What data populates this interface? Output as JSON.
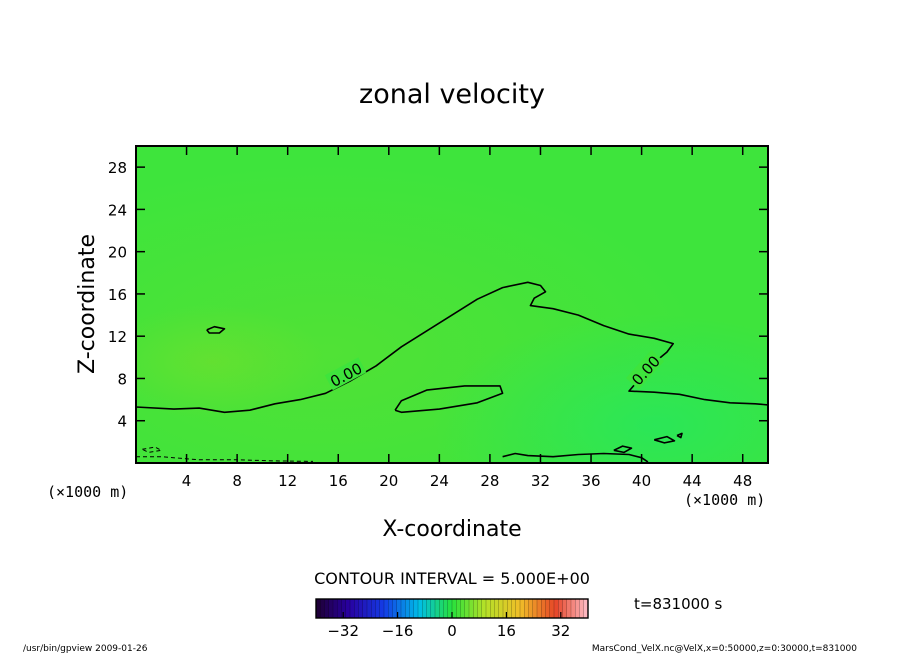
{
  "chart_data": {
    "type": "contour",
    "title": "zonal velocity",
    "xlabel": "X-coordinate",
    "ylabel": "Z-coordinate",
    "x_unit_label": "(×1000 m)",
    "y_unit_label": "(×1000 m)",
    "xlim": [
      0,
      50
    ],
    "ylim": [
      0,
      30
    ],
    "x_ticks": [
      4,
      8,
      12,
      16,
      20,
      24,
      28,
      32,
      36,
      40,
      44,
      48
    ],
    "y_ticks": [
      4,
      8,
      12,
      16,
      20,
      24,
      28
    ],
    "contour_interval_text": "CONTOUR INTERVAL = 5.000E+00",
    "contour_label_text": "0.00",
    "time_text": "t=831000 s",
    "colorbar": {
      "min": -40,
      "max": 40,
      "tick_values": [
        -32,
        -16,
        0,
        16,
        32
      ],
      "tick_labels": [
        "−32",
        "−16",
        "0",
        "16",
        "32"
      ]
    },
    "contours": [
      {
        "level": 0,
        "label": "0.00",
        "points": [
          [
            0,
            5.3
          ],
          [
            3,
            5.1
          ],
          [
            5,
            5.2
          ],
          [
            7,
            4.8
          ],
          [
            9,
            5.0
          ],
          [
            11,
            5.6
          ],
          [
            13,
            6.0
          ],
          [
            15,
            6.6
          ],
          [
            17,
            7.8
          ],
          [
            19,
            9.2
          ],
          [
            21,
            11.0
          ],
          [
            23,
            12.5
          ],
          [
            25,
            14.0
          ],
          [
            27,
            15.5
          ],
          [
            29,
            16.6
          ],
          [
            31,
            17.1
          ],
          [
            32,
            16.8
          ],
          [
            32.4,
            16.2
          ],
          [
            31.5,
            15.6
          ],
          [
            31.2,
            14.9
          ],
          [
            33,
            14.6
          ],
          [
            35,
            14.0
          ],
          [
            37,
            13.0
          ],
          [
            39,
            12.2
          ],
          [
            41,
            11.8
          ],
          [
            42.5,
            11.3
          ],
          [
            42,
            10.5
          ],
          [
            41,
            9.5
          ],
          [
            40,
            8.5
          ],
          [
            39.5,
            7.5
          ],
          [
            39,
            6.8
          ],
          [
            41,
            6.7
          ],
          [
            43,
            6.5
          ],
          [
            45,
            6.0
          ],
          [
            47,
            5.7
          ],
          [
            49,
            5.6
          ],
          [
            50,
            5.5
          ]
        ]
      },
      {
        "level": 0,
        "points": [
          [
            20.5,
            5.0
          ],
          [
            21,
            5.9
          ],
          [
            23,
            6.9
          ],
          [
            26,
            7.3
          ],
          [
            28.8,
            7.3
          ],
          [
            29,
            6.6
          ],
          [
            27,
            5.7
          ],
          [
            24,
            5.1
          ],
          [
            21,
            4.8
          ],
          [
            20.5,
            5.0
          ]
        ]
      },
      {
        "level": 0,
        "points": [
          [
            5.6,
            12.6
          ],
          [
            6.2,
            12.9
          ],
          [
            7,
            12.7
          ],
          [
            6.6,
            12.3
          ],
          [
            5.8,
            12.3
          ],
          [
            5.6,
            12.6
          ]
        ]
      },
      {
        "level": 0,
        "points": [
          [
            29,
            0.6
          ],
          [
            30,
            0.9
          ],
          [
            31,
            0.7
          ],
          [
            33,
            0.6
          ],
          [
            35,
            0.8
          ],
          [
            37,
            0.9
          ],
          [
            39,
            0.8
          ],
          [
            40,
            0.5
          ],
          [
            40.5,
            0.1
          ]
        ]
      },
      {
        "level": 0,
        "points": [
          [
            37.8,
            1.2
          ],
          [
            38.5,
            1.6
          ],
          [
            39.2,
            1.4
          ],
          [
            38.6,
            1.0
          ],
          [
            37.8,
            1.2
          ]
        ]
      },
      {
        "level": 0,
        "points": [
          [
            41,
            2.2
          ],
          [
            42,
            2.5
          ],
          [
            42.6,
            2.1
          ],
          [
            41.8,
            1.9
          ],
          [
            41,
            2.2
          ]
        ]
      },
      {
        "level": 0,
        "points": [
          [
            42.8,
            2.6
          ],
          [
            43.2,
            2.8
          ],
          [
            43.1,
            2.4
          ],
          [
            42.8,
            2.6
          ]
        ]
      }
    ],
    "dashed_contours": [
      {
        "level": -5,
        "points": [
          [
            0.5,
            1.3
          ],
          [
            1.5,
            1.5
          ],
          [
            2,
            1.2
          ],
          [
            1,
            1.0
          ],
          [
            0.5,
            1.3
          ]
        ]
      },
      {
        "level": -5,
        "points": [
          [
            0,
            0.6
          ],
          [
            2,
            0.6
          ],
          [
            5,
            0.3
          ],
          [
            8,
            0.3
          ],
          [
            11,
            0.2
          ],
          [
            14,
            0.15
          ]
        ]
      }
    ],
    "footer_left": "/usr/bin/gpview   2009-01-26",
    "footer_right": "MarsCond_VelX.nc@VelX,x=0:50000,z=0:30000,t=831000"
  }
}
